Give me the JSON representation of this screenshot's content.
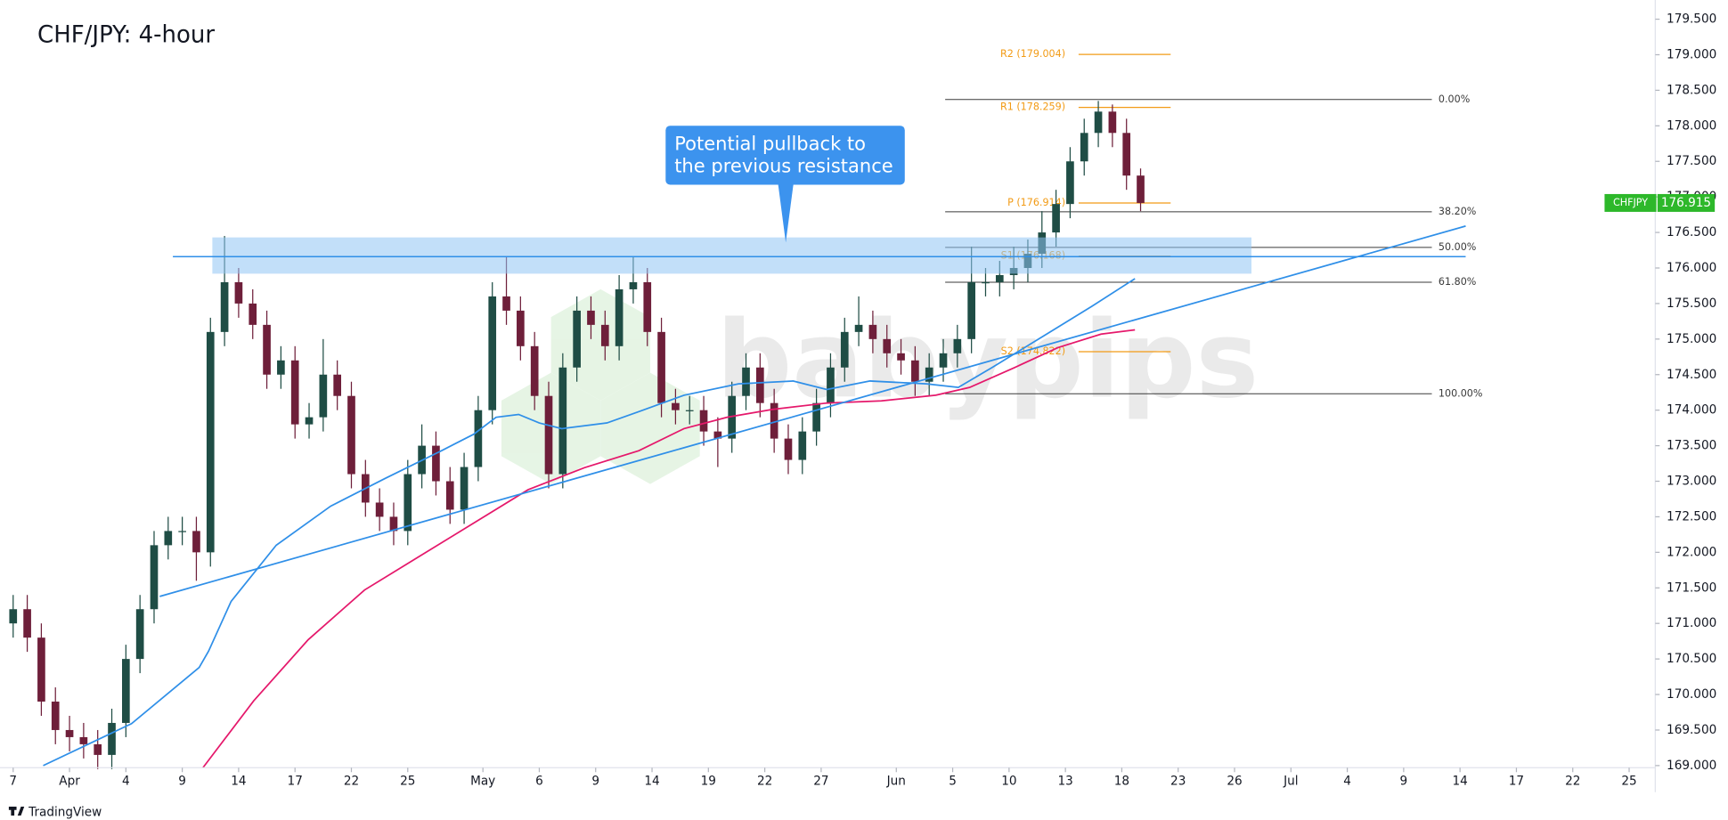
{
  "chart_data": {
    "type": "candlestick",
    "title": "CHF/JPY: 4-hour",
    "symbol": "CHFJPY",
    "watermark": "babypips",
    "source": "TradingView",
    "up_color": "#1f4d45",
    "down_color": "#6e1f3a",
    "xlim": [
      -0.7,
      87.39
    ],
    "ylim": [
      168.97,
      179.77
    ],
    "xticks": [
      {
        "value": 0,
        "label": "7"
      },
      {
        "value": 3,
        "label": "Apr"
      },
      {
        "value": 6,
        "label": "4"
      },
      {
        "value": 9,
        "label": "9"
      },
      {
        "value": 12,
        "label": "14"
      },
      {
        "value": 15,
        "label": "17"
      },
      {
        "value": 18,
        "label": "22"
      },
      {
        "value": 21,
        "label": "25"
      },
      {
        "value": 25,
        "label": "May"
      },
      {
        "value": 28,
        "label": "6"
      },
      {
        "value": 31,
        "label": "9"
      },
      {
        "value": 34,
        "label": "14"
      },
      {
        "value": 37,
        "label": "19"
      },
      {
        "value": 40,
        "label": "22"
      },
      {
        "value": 43,
        "label": "27"
      },
      {
        "value": 47,
        "label": "Jun"
      },
      {
        "value": 50,
        "label": "5"
      },
      {
        "value": 53,
        "label": "10"
      },
      {
        "value": 56,
        "label": "13"
      },
      {
        "value": 59,
        "label": "18"
      },
      {
        "value": 62,
        "label": "23"
      },
      {
        "value": 65,
        "label": "26"
      },
      {
        "value": 68,
        "label": "Jul"
      },
      {
        "value": 71,
        "label": "4"
      },
      {
        "value": 74,
        "label": "9"
      },
      {
        "value": 77,
        "label": "14"
      },
      {
        "value": 80,
        "label": "17"
      },
      {
        "value": 83,
        "label": "22"
      },
      {
        "value": 86,
        "label": "25"
      }
    ],
    "yticks": [
      {
        "value": 169,
        "label": "169.000"
      },
      {
        "value": 169.5,
        "label": "169.500"
      },
      {
        "value": 170,
        "label": "170.000"
      },
      {
        "value": 170.5,
        "label": "170.500"
      },
      {
        "value": 171,
        "label": "171.000"
      },
      {
        "value": 171.5,
        "label": "171.500"
      },
      {
        "value": 172,
        "label": "172.000"
      },
      {
        "value": 172.5,
        "label": "172.500"
      },
      {
        "value": 173,
        "label": "173.000"
      },
      {
        "value": 173.5,
        "label": "173.500"
      },
      {
        "value": 174,
        "label": "174.000"
      },
      {
        "value": 174.5,
        "label": "174.500"
      },
      {
        "value": 175,
        "label": "175.000"
      },
      {
        "value": 175.5,
        "label": "175.500"
      },
      {
        "value": 176,
        "label": "176.000"
      },
      {
        "value": 176.5,
        "label": "176.500"
      },
      {
        "value": 177,
        "label": "177.000"
      },
      {
        "value": 177.5,
        "label": "177.500"
      },
      {
        "value": 178,
        "label": "178.000"
      },
      {
        "value": 178.5,
        "label": "178.500"
      },
      {
        "value": 179,
        "label": "179.000"
      },
      {
        "value": 179.5,
        "label": "179.500"
      }
    ],
    "x": [
      0,
      0.75,
      1.5,
      2.25,
      3,
      3.75,
      4.5,
      5.25,
      6,
      6.75,
      7.5,
      8.25,
      9,
      9.75,
      10.5,
      11.25,
      12,
      12.75,
      13.5,
      14.25,
      15,
      15.75,
      16.5,
      17.25,
      18,
      18.75,
      19.5,
      20.25,
      21,
      21.75,
      22.5,
      23.25,
      24,
      24.75,
      25.5,
      26.25,
      27,
      27.75,
      28.5,
      29.25,
      30,
      30.75,
      31.5,
      32.25,
      33,
      33.75,
      34.5,
      35.25,
      36,
      36.75,
      37.5,
      38.25,
      39,
      39.75,
      40.5,
      41.25,
      42,
      42.75,
      43.5,
      44.25,
      45,
      45.75,
      46.5,
      47.25,
      48,
      48.75,
      49.5,
      50.25,
      51,
      51.75,
      52.5,
      53.25,
      54,
      54.75,
      55.5,
      56.25,
      57,
      57.75,
      58.5,
      59.25,
      60
    ],
    "open": [
      171.0,
      171.2,
      170.8,
      169.9,
      169.5,
      169.4,
      169.3,
      169.15,
      169.6,
      170.5,
      171.2,
      172.1,
      172.3,
      172.3,
      172.0,
      175.1,
      175.8,
      175.5,
      175.2,
      174.5,
      174.7,
      173.8,
      173.9,
      174.5,
      174.2,
      173.1,
      172.7,
      172.5,
      172.3,
      173.1,
      173.5,
      173.0,
      172.6,
      173.2,
      174.0,
      175.6,
      175.4,
      174.9,
      174.2,
      173.1,
      174.6,
      175.4,
      175.2,
      174.9,
      175.7,
      175.8,
      175.1,
      174.1,
      174.0,
      174.0,
      173.7,
      173.6,
      174.2,
      174.6,
      174.1,
      173.6,
      173.3,
      173.7,
      174.1,
      174.6,
      175.1,
      175.2,
      175.0,
      174.8,
      174.7,
      174.4,
      174.6,
      174.8,
      175.0,
      175.8,
      175.8,
      175.9,
      176.0,
      176.2,
      176.5,
      176.9,
      177.5,
      177.9,
      178.2,
      177.9,
      177.3
    ],
    "high": [
      171.4,
      171.4,
      171.0,
      170.1,
      169.7,
      169.6,
      169.5,
      169.8,
      170.7,
      171.4,
      172.3,
      172.5,
      172.5,
      172.5,
      175.3,
      176.45,
      176.0,
      175.7,
      175.4,
      174.9,
      174.9,
      174.1,
      175.0,
      174.7,
      174.4,
      173.3,
      172.9,
      172.7,
      173.3,
      173.8,
      173.7,
      173.2,
      173.4,
      174.2,
      175.8,
      176.15,
      175.6,
      175.1,
      174.4,
      174.8,
      175.6,
      175.6,
      175.4,
      175.9,
      176.15,
      176.0,
      175.3,
      174.3,
      174.2,
      174.2,
      173.9,
      174.4,
      174.8,
      174.8,
      174.3,
      173.8,
      173.9,
      174.3,
      174.8,
      175.3,
      175.6,
      175.4,
      175.2,
      175.0,
      174.9,
      174.8,
      175.0,
      175.2,
      176.3,
      176.0,
      176.1,
      176.3,
      176.4,
      176.8,
      177.1,
      177.7,
      178.1,
      178.35,
      178.3,
      178.1,
      177.4
    ],
    "low": [
      170.8,
      170.6,
      169.7,
      169.3,
      169.2,
      169.1,
      168.95,
      168.95,
      169.4,
      170.3,
      171.0,
      171.9,
      172.1,
      171.6,
      171.8,
      174.9,
      175.3,
      175.0,
      174.3,
      174.3,
      173.6,
      173.6,
      173.7,
      174.0,
      172.9,
      172.5,
      172.3,
      172.1,
      172.1,
      172.9,
      172.8,
      172.4,
      172.4,
      173.0,
      173.8,
      175.2,
      174.7,
      174.0,
      172.9,
      172.9,
      174.4,
      175.0,
      174.7,
      174.7,
      175.5,
      174.9,
      173.9,
      173.8,
      173.8,
      173.5,
      173.2,
      173.4,
      174.0,
      173.9,
      173.4,
      173.1,
      173.1,
      173.5,
      173.9,
      174.4,
      174.9,
      174.8,
      174.6,
      174.5,
      174.2,
      174.2,
      174.4,
      174.6,
      174.8,
      175.6,
      175.6,
      175.7,
      175.8,
      176.0,
      176.3,
      176.7,
      177.3,
      177.7,
      177.7,
      177.1,
      176.8
    ],
    "close": [
      171.2,
      170.8,
      169.9,
      169.5,
      169.4,
      169.3,
      169.15,
      169.6,
      170.5,
      171.2,
      172.1,
      172.3,
      172.3,
      172.0,
      175.1,
      175.8,
      175.5,
      175.2,
      174.5,
      174.7,
      173.8,
      173.9,
      174.5,
      174.2,
      173.1,
      172.7,
      172.5,
      172.3,
      173.1,
      173.5,
      173.0,
      172.6,
      173.2,
      174.0,
      175.6,
      175.4,
      174.9,
      174.2,
      173.1,
      174.6,
      175.4,
      175.2,
      174.9,
      175.7,
      175.8,
      175.1,
      174.1,
      174.0,
      174.0,
      173.7,
      173.6,
      174.2,
      174.6,
      174.1,
      173.6,
      173.3,
      173.7,
      174.1,
      174.6,
      175.1,
      175.2,
      175.0,
      174.8,
      174.7,
      174.4,
      174.6,
      174.8,
      175.0,
      175.8,
      175.8,
      175.9,
      176.0,
      176.2,
      176.5,
      176.9,
      177.5,
      177.9,
      178.2,
      177.9,
      177.3,
      176.915
    ],
    "tag_color": "#2db82a",
    "overlays": [
      {
        "color": "#2f8fe8",
        "x": [
          1.6,
          6.3,
          9.9,
          10.4,
          11.6,
          14.0,
          16.9,
          19.8,
          22.8,
          24.5,
          25.7,
          26.9,
          28.0,
          29.2,
          31.6,
          33.3,
          35.7,
          38.6,
          41.5,
          43.3,
          45.6,
          48.6,
          50.3,
          52.1,
          55.0,
          57.4,
          59.7
        ],
        "values": [
          169.0,
          169.59,
          170.38,
          170.61,
          171.31,
          172.1,
          172.65,
          173.04,
          173.43,
          173.66,
          173.9,
          173.94,
          173.82,
          173.74,
          173.82,
          173.98,
          174.21,
          174.37,
          174.41,
          174.29,
          174.41,
          174.37,
          174.32,
          174.6,
          175.07,
          175.46,
          175.85
        ]
      },
      {
        "color": "#e5186b",
        "x": [
          10.1,
          12.8,
          15.7,
          18.7,
          21.6,
          24.5,
          27.4,
          30.4,
          33.3,
          35.7,
          38.0,
          40.4,
          43.3,
          46.2,
          49.1,
          50.9,
          53.3,
          55.6,
          57.9,
          59.7
        ],
        "values": [
          168.97,
          169.91,
          170.77,
          171.47,
          171.94,
          172.41,
          172.88,
          173.19,
          173.43,
          173.74,
          173.9,
          174.01,
          174.1,
          174.13,
          174.21,
          174.32,
          174.6,
          174.88,
          175.07,
          175.13
        ]
      }
    ],
    "trendline": {
      "color": "#2f8fe8",
      "x": [
        7.8,
        77.3
      ],
      "values": [
        171.38,
        176.59
      ]
    },
    "resistance_line": {
      "color": "#2f8fe8",
      "x": [
        8.5,
        77.3
      ],
      "value": 176.16
    },
    "zone": {
      "color": "#90c4f4",
      "x": [
        10.6,
        65.9
      ],
      "values": [
        175.92,
        176.43
      ]
    },
    "callout": {
      "color": "#3c93ee",
      "lines": [
        "Potential pullback to",
        "the previous resistance"
      ]
    },
    "fib": {
      "color": "#3a3a3a",
      "x": [
        49.6,
        75.5
      ],
      "labels": [
        "0.00%",
        "38.20%",
        "50.00%",
        "61.80%",
        "100.00%"
      ],
      "prices": [
        178.37,
        176.79,
        176.29,
        175.8,
        174.23
      ]
    },
    "pivots": {
      "color": "#f29b16",
      "x": [
        56.7,
        61.6
      ],
      "labels": [
        "R2 (179.004)",
        "R1 (178.259)",
        "P (176.914)",
        "S1 (176.168)",
        "S2 (174.822)"
      ],
      "values": [
        179.004,
        178.259,
        176.914,
        176.168,
        174.822
      ]
    }
  }
}
